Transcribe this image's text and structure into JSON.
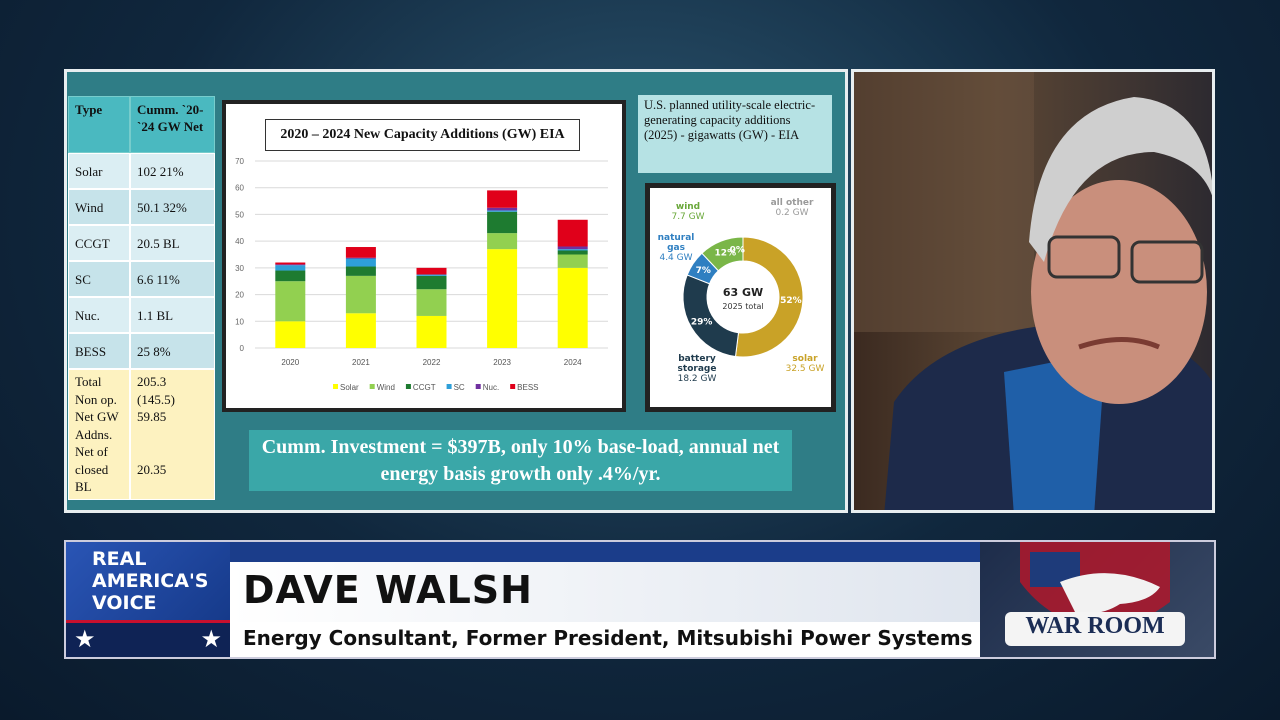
{
  "slide": {
    "table": {
      "header": [
        "Type",
        "Cumm. `20-`24 GW Net"
      ],
      "rows": [
        [
          "Solar",
          "102   21%"
        ],
        [
          "Wind",
          "50.1   32%"
        ],
        [
          "CCGT",
          "20.5   BL"
        ],
        [
          "SC",
          "6.6   11%"
        ],
        [
          "Nuc.",
          "1.1   BL"
        ],
        [
          "BESS",
          "25     8%"
        ],
        [
          "Total\nNon op.\nNet GW\nAddns.\nNet of\nclosed\nBL",
          "205.3\n(145.5)\n 59.85\n\n\n20.35"
        ]
      ]
    },
    "donut_title": "U.S. planned utility-scale electric-generating capacity additions (2025) - gigawatts (GW) - EIA",
    "note": "Cumm. Investment = $397B, only 10% base-load, annual net energy basis growth only .4%/yr."
  },
  "chart_data": [
    {
      "type": "bar",
      "title": "2020 – 2024 New Capacity Additions (GW) EIA",
      "categories": [
        "2020",
        "2021",
        "2022",
        "2023",
        "2024"
      ],
      "series": [
        {
          "name": "Solar",
          "color": "#ffff00",
          "values": [
            10,
            13,
            12,
            37,
            30
          ]
        },
        {
          "name": "Wind",
          "color": "#92d050",
          "values": [
            15,
            14,
            10,
            6,
            5
          ]
        },
        {
          "name": "CCGT",
          "color": "#1e7b30",
          "values": [
            4,
            3.5,
            5,
            8,
            1.5
          ]
        },
        {
          "name": "SC",
          "color": "#2e9fd8",
          "values": [
            2,
            3,
            0.5,
            0.5,
            0.5
          ]
        },
        {
          "name": "Nuc.",
          "color": "#7030a0",
          "values": [
            0.3,
            0.3,
            0,
            1,
            1
          ]
        },
        {
          "name": "BESS",
          "color": "#e0001a",
          "values": [
            0.7,
            4,
            2.5,
            6.5,
            10
          ]
        }
      ],
      "ylim": [
        0,
        70
      ],
      "yticks": [
        0,
        10,
        20,
        30,
        40,
        50,
        60,
        70
      ],
      "grid": true,
      "stacked": true,
      "legend": "bottom"
    },
    {
      "type": "donut",
      "center_value": "63 GW",
      "center_label": "2025 total",
      "categories": [
        "solar",
        "battery storage",
        "natural gas",
        "wind",
        "all other"
      ],
      "values": [
        52,
        29,
        7,
        12,
        0
      ],
      "value_labels": [
        "52%",
        "29%",
        "7%",
        "12%",
        "0%"
      ],
      "gw": [
        32.5,
        18.2,
        4.4,
        7.7,
        0.2
      ],
      "gw_labels": [
        "32.5 GW",
        "18.2 GW",
        "4.4 GW",
        "7.7 GW",
        "0.2 GW"
      ],
      "colors": [
        "#c9a227",
        "#1f3b4d",
        "#2f7fc1",
        "#7ab648",
        "#b5b5b5"
      ]
    }
  ],
  "lower_third": {
    "network": [
      "REAL",
      "AMERICA'S",
      "VOICE"
    ],
    "name": "DAVE WALSH",
    "role": "Energy Consultant, Former President, Mitsubishi Power Systems",
    "show": "WAR ROOM"
  }
}
